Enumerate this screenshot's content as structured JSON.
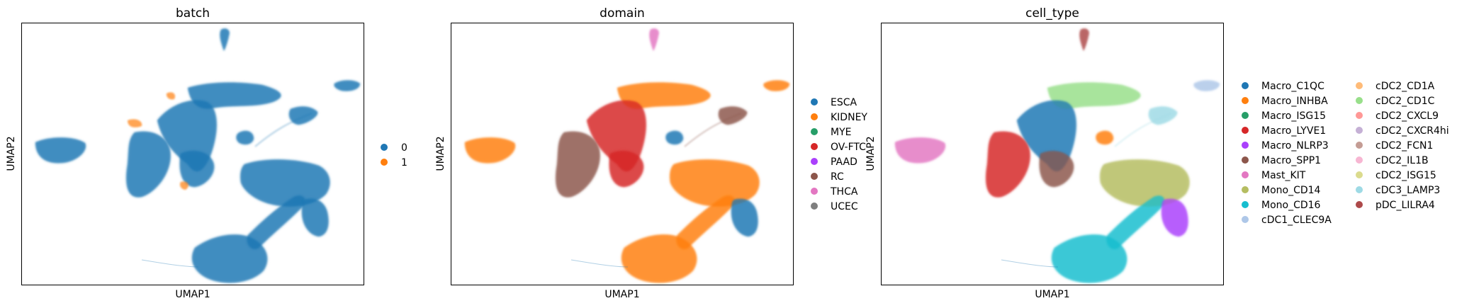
{
  "chart_data": [
    {
      "type": "scatter",
      "title": "batch",
      "xlabel": "UMAP1",
      "ylabel": "UMAP2",
      "grid": false,
      "legend": "right",
      "series": [
        {
          "name": "0",
          "color": "#1f77b4"
        },
        {
          "name": "1",
          "color": "#ff7f0e"
        }
      ]
    },
    {
      "type": "scatter",
      "title": "domain",
      "xlabel": "UMAP1",
      "ylabel": "UMAP2",
      "grid": false,
      "legend": "right",
      "series": [
        {
          "name": "ESCA",
          "color": "#1f77b4"
        },
        {
          "name": "KIDNEY",
          "color": "#ff7f0e"
        },
        {
          "name": "MYE",
          "color": "#279e68"
        },
        {
          "name": "OV-FTC",
          "color": "#d62728"
        },
        {
          "name": "PAAD",
          "color": "#aa40fc"
        },
        {
          "name": "RC",
          "color": "#8c564b"
        },
        {
          "name": "THCA",
          "color": "#e377c2"
        },
        {
          "name": "UCEC",
          "color": "#7f7f7f"
        }
      ]
    },
    {
      "type": "scatter",
      "title": "cell_type",
      "xlabel": "UMAP1",
      "ylabel": "UMAP2",
      "grid": false,
      "legend": "right",
      "series": [
        {
          "name": "Macro_C1QC",
          "color": "#1f77b4"
        },
        {
          "name": "Macro_INHBA",
          "color": "#ff7f0e"
        },
        {
          "name": "Macro_ISG15",
          "color": "#279e68"
        },
        {
          "name": "Macro_LYVE1",
          "color": "#d62728"
        },
        {
          "name": "Macro_NLRP3",
          "color": "#aa40fc"
        },
        {
          "name": "Macro_SPP1",
          "color": "#8c564b"
        },
        {
          "name": "Mast_KIT",
          "color": "#e377c2"
        },
        {
          "name": "Mono_CD14",
          "color": "#b5bd61"
        },
        {
          "name": "Mono_CD16",
          "color": "#17becf"
        },
        {
          "name": "cDC1_CLEC9A",
          "color": "#aec7e8"
        },
        {
          "name": "cDC2_CD1A",
          "color": "#ffbb78"
        },
        {
          "name": "cDC2_CD1C",
          "color": "#98df8a"
        },
        {
          "name": "cDC2_CXCL9",
          "color": "#ff9896"
        },
        {
          "name": "cDC2_CXCR4hi",
          "color": "#c5b0d5"
        },
        {
          "name": "cDC2_FCN1",
          "color": "#c49c94"
        },
        {
          "name": "cDC2_IL1B",
          "color": "#f7b6d2"
        },
        {
          "name": "cDC2_ISG15",
          "color": "#dbdb8d"
        },
        {
          "name": "cDC3_LAMP3",
          "color": "#9edae5"
        },
        {
          "name": "pDC_LILRA4",
          "color": "#ad494a"
        }
      ]
    }
  ]
}
